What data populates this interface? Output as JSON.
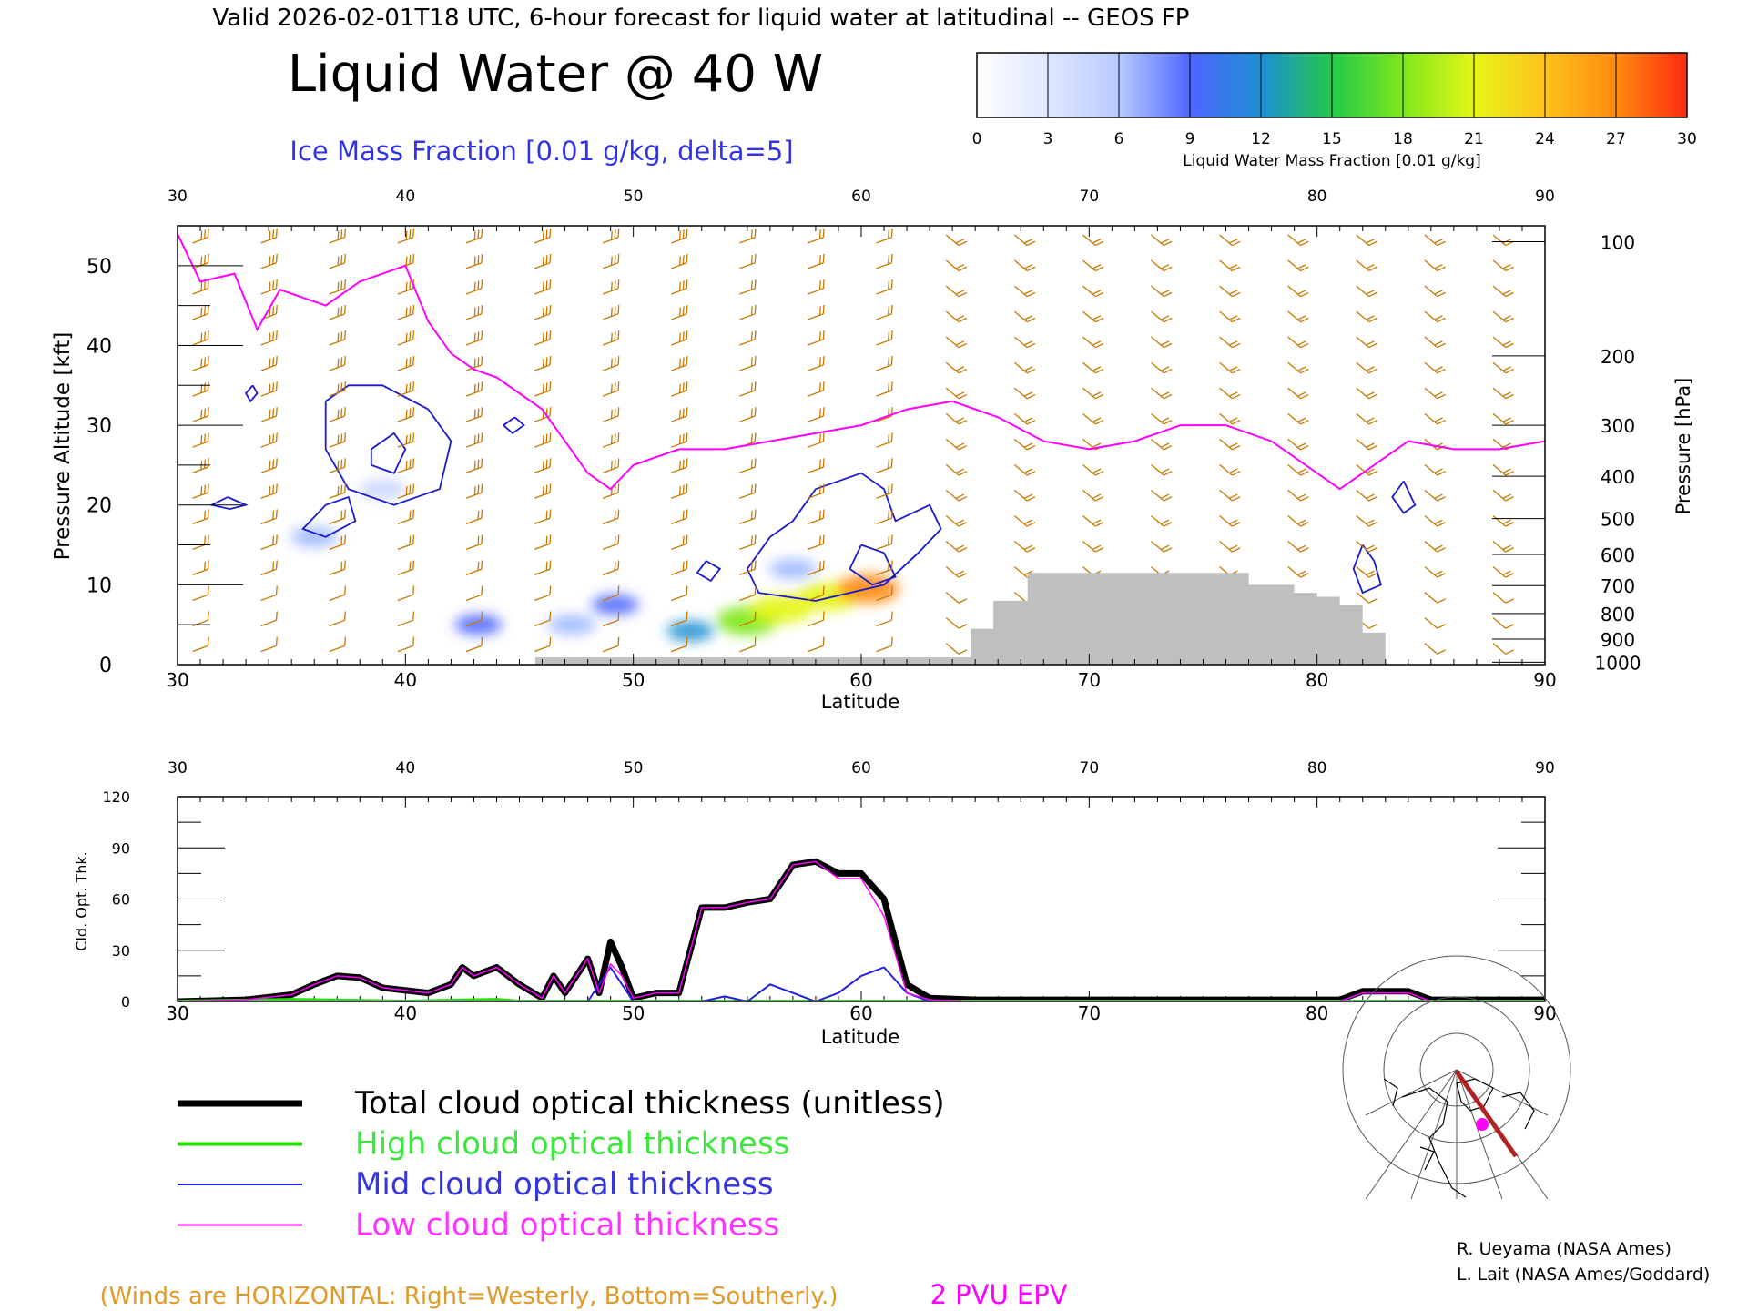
{
  "header": {
    "valid_line": "Valid 2026-02-01T18 UTC, 6-hour forecast for liquid water at latitudinal -- GEOS FP",
    "title": "Liquid Water @ 40 W",
    "subtitle": "Ice Mass Fraction [0.01 g/kg, delta=5]"
  },
  "colorbar": {
    "label": "Liquid Water Mass Fraction [0.01 g/kg]",
    "ticks": [
      "0",
      "3",
      "6",
      "9",
      "12",
      "15",
      "18",
      "21",
      "24",
      "27",
      "30"
    ],
    "colors": [
      "#f2f4ff",
      "#c9d6ff",
      "#9db8ff",
      "#4d66ff",
      "#1e8fd4",
      "#22c84a",
      "#7ee81a",
      "#e6f51a",
      "#ffc21a",
      "#ff8a10",
      "#ff3010"
    ]
  },
  "chart_data": [
    {
      "type": "heatmap",
      "title": "Liquid Water @ 40 W",
      "xlabel": "Latitude",
      "ylabel_left": "Pressure Altitude [kft]",
      "ylabel_right": "Pressure [hPa]",
      "xlim": [
        30,
        90
      ],
      "ylim": [
        0,
        55
      ],
      "x_ticks": [
        "30",
        "40",
        "50",
        "60",
        "70",
        "80",
        "90"
      ],
      "y_ticks_left": [
        "0",
        "10",
        "20",
        "30",
        "40",
        "50"
      ],
      "y_ticks_right": [
        {
          "label": "100",
          "kft": 53
        },
        {
          "label": "200",
          "kft": 38.7
        },
        {
          "label": "300",
          "kft": 30
        },
        {
          "label": "400",
          "kft": 23.6
        },
        {
          "label": "500",
          "kft": 18.3
        },
        {
          "label": "600",
          "kft": 13.8
        },
        {
          "label": "700",
          "kft": 9.9
        },
        {
          "label": "800",
          "kft": 6.4
        },
        {
          "label": "900",
          "kft": 3.2
        },
        {
          "label": "1000",
          "kft": 0.3
        }
      ],
      "liquid_water_blobs": [
        {
          "lat": 43.2,
          "kft": 5.0,
          "value": 8
        },
        {
          "lat": 47.3,
          "kft": 5.0,
          "value": 7
        },
        {
          "lat": 49.2,
          "kft": 7.5,
          "value": 9
        },
        {
          "lat": 52.5,
          "kft": 4.2,
          "value": 12
        },
        {
          "lat": 55.0,
          "kft": 5.5,
          "value": 18
        },
        {
          "lat": 56.5,
          "kft": 7.0,
          "value": 20
        },
        {
          "lat": 58.5,
          "kft": 8.5,
          "value": 22
        },
        {
          "lat": 60.3,
          "kft": 9.5,
          "value": 26
        },
        {
          "lat": 36.0,
          "kft": 16.0,
          "value": 6
        },
        {
          "lat": 39.0,
          "kft": 22.0,
          "value": 3
        },
        {
          "lat": 57.0,
          "kft": 12.0,
          "value": 5
        }
      ],
      "epv_2pvu_line": [
        [
          30,
          54
        ],
        [
          31,
          48
        ],
        [
          32.5,
          49
        ],
        [
          33.5,
          42
        ],
        [
          34.5,
          47
        ],
        [
          35.5,
          46
        ],
        [
          36.5,
          45
        ],
        [
          38,
          48
        ],
        [
          39,
          49
        ],
        [
          40,
          50
        ],
        [
          41,
          43
        ],
        [
          42,
          39
        ],
        [
          43,
          37
        ],
        [
          44,
          36
        ],
        [
          45,
          34
        ],
        [
          46,
          32
        ],
        [
          47,
          28
        ],
        [
          48,
          24
        ],
        [
          49,
          22
        ],
        [
          50,
          25
        ],
        [
          51,
          26
        ],
        [
          52,
          27
        ],
        [
          54,
          27
        ],
        [
          56,
          28
        ],
        [
          58,
          29
        ],
        [
          60,
          30
        ],
        [
          62,
          32
        ],
        [
          64,
          33
        ],
        [
          66,
          31
        ],
        [
          68,
          28
        ],
        [
          70,
          27
        ],
        [
          72,
          28
        ],
        [
          74,
          30
        ],
        [
          76,
          30
        ],
        [
          78,
          28
        ],
        [
          80,
          24
        ],
        [
          81,
          22
        ],
        [
          82,
          24
        ],
        [
          84,
          28
        ],
        [
          86,
          27
        ],
        [
          88,
          27
        ],
        [
          90,
          28
        ]
      ],
      "terrain": [
        [
          45.7,
          0.9
        ],
        [
          64.8,
          0.9
        ],
        [
          64.8,
          4.5
        ],
        [
          65.8,
          4.5
        ],
        [
          65.8,
          8
        ],
        [
          67.3,
          8
        ],
        [
          67.3,
          11.5
        ],
        [
          77,
          11.5
        ],
        [
          77,
          10
        ],
        [
          79,
          10
        ],
        [
          79,
          9
        ],
        [
          80,
          9
        ],
        [
          80,
          8.5
        ],
        [
          81,
          8.5
        ],
        [
          81,
          7.5
        ],
        [
          82,
          7.5
        ],
        [
          82,
          4
        ],
        [
          83,
          4
        ],
        [
          83,
          0
        ],
        [
          45.7,
          0
        ]
      ],
      "wind_note": "(Winds are HORIZONTAL: Right=Westerly, Bottom=Southerly.)",
      "epv_label": "2 PVU EPV"
    },
    {
      "type": "line",
      "xlabel": "Latitude",
      "ylabel": "Cld. Opt. Thk.",
      "xlim": [
        30,
        90
      ],
      "ylim": [
        0,
        120
      ],
      "x_ticks": [
        "30",
        "40",
        "50",
        "60",
        "70",
        "80",
        "90"
      ],
      "y_ticks": [
        "0",
        "30",
        "60",
        "90",
        "120"
      ],
      "series": [
        {
          "name": "Total cloud optical thickness (unitless)",
          "color": "#000000",
          "points": [
            [
              30,
              0
            ],
            [
              33,
              1
            ],
            [
              35,
              4
            ],
            [
              36,
              10
            ],
            [
              37,
              15
            ],
            [
              38,
              14
            ],
            [
              39,
              8
            ],
            [
              41,
              5
            ],
            [
              42,
              10
            ],
            [
              42.5,
              20
            ],
            [
              43,
              15
            ],
            [
              44,
              20
            ],
            [
              45,
              10
            ],
            [
              46,
              2
            ],
            [
              46.5,
              15
            ],
            [
              47,
              5
            ],
            [
              47.5,
              15
            ],
            [
              48,
              25
            ],
            [
              48.5,
              5
            ],
            [
              49,
              35
            ],
            [
              49.5,
              20
            ],
            [
              50,
              2
            ],
            [
              51,
              5
            ],
            [
              52,
              5
            ],
            [
              53,
              55
            ],
            [
              54,
              55
            ],
            [
              55,
              58
            ],
            [
              56,
              60
            ],
            [
              57,
              80
            ],
            [
              58,
              82
            ],
            [
              59,
              75
            ],
            [
              60,
              75
            ],
            [
              61,
              60
            ],
            [
              62,
              10
            ],
            [
              63,
              2
            ],
            [
              65,
              1
            ],
            [
              75,
              1
            ],
            [
              81,
              1
            ],
            [
              82,
              6
            ],
            [
              84,
              6
            ],
            [
              85,
              1
            ],
            [
              90,
              1
            ]
          ]
        },
        {
          "name": "High cloud optical thickness",
          "color": "#22e000",
          "points": [
            [
              30,
              0
            ],
            [
              35,
              1
            ],
            [
              40,
              0
            ],
            [
              44,
              1
            ],
            [
              45,
              0
            ],
            [
              90,
              0
            ]
          ]
        },
        {
          "name": "Mid cloud optical thickness",
          "color": "#2020e0",
          "points": [
            [
              30,
              0
            ],
            [
              48,
              0
            ],
            [
              49,
              20
            ],
            [
              50,
              0
            ],
            [
              53,
              0
            ],
            [
              54,
              3
            ],
            [
              55,
              0
            ],
            [
              56,
              10
            ],
            [
              57,
              5
            ],
            [
              58,
              0
            ],
            [
              59,
              5
            ],
            [
              60,
              15
            ],
            [
              61,
              20
            ],
            [
              62,
              5
            ],
            [
              63,
              0
            ],
            [
              90,
              0
            ]
          ]
        },
        {
          "name": "Low cloud optical thickness",
          "color": "#ff00ff",
          "points": [
            [
              30,
              0
            ],
            [
              33,
              1
            ],
            [
              35,
              4
            ],
            [
              36,
              10
            ],
            [
              37,
              15
            ],
            [
              38,
              14
            ],
            [
              39,
              8
            ],
            [
              41,
              5
            ],
            [
              42,
              10
            ],
            [
              42.5,
              20
            ],
            [
              43,
              15
            ],
            [
              44,
              20
            ],
            [
              45,
              10
            ],
            [
              46,
              2
            ],
            [
              46.5,
              15
            ],
            [
              47,
              5
            ],
            [
              47.5,
              15
            ],
            [
              48,
              25
            ],
            [
              48.5,
              5
            ],
            [
              49,
              22
            ],
            [
              49.5,
              15
            ],
            [
              50,
              2
            ],
            [
              51,
              5
            ],
            [
              52,
              5
            ],
            [
              53,
              55
            ],
            [
              54,
              55
            ],
            [
              55,
              58
            ],
            [
              56,
              60
            ],
            [
              57,
              80
            ],
            [
              58,
              82
            ],
            [
              59,
              72
            ],
            [
              60,
              72
            ],
            [
              61,
              50
            ],
            [
              62,
              5
            ],
            [
              63,
              1
            ],
            [
              65,
              0
            ],
            [
              81,
              0
            ],
            [
              82,
              5
            ],
            [
              84,
              5
            ],
            [
              85,
              0
            ],
            [
              90,
              0
            ]
          ]
        }
      ]
    }
  ],
  "legend": [
    {
      "label": "Total cloud optical thickness (unitless)",
      "color": "#000000",
      "text_color": "#000000",
      "width": 7
    },
    {
      "label": "High cloud optical thickness",
      "color": "#22e000",
      "text_color": "#3ce63c",
      "width": 4
    },
    {
      "label": "Mid cloud optical thickness",
      "color": "#2020e0",
      "text_color": "#3636e0",
      "width": 2
    },
    {
      "label": "Low cloud optical thickness",
      "color": "#ff00ff",
      "text_color": "#ff33ff",
      "width": 2
    }
  ],
  "credits": {
    "line1": "R. Ueyama (NASA Ames)",
    "line2": "L. Lait (NASA Ames/Goddard)"
  },
  "colors": {
    "epv": "#ff00ff",
    "ice_contour": "#1a1acc",
    "wind_barb": "#c87800",
    "terrain": "#bfbfbf",
    "subtitle": "#3333e6",
    "wind_note": "#e09a2a"
  },
  "map_inset_icon": "north-polar-map-icon"
}
